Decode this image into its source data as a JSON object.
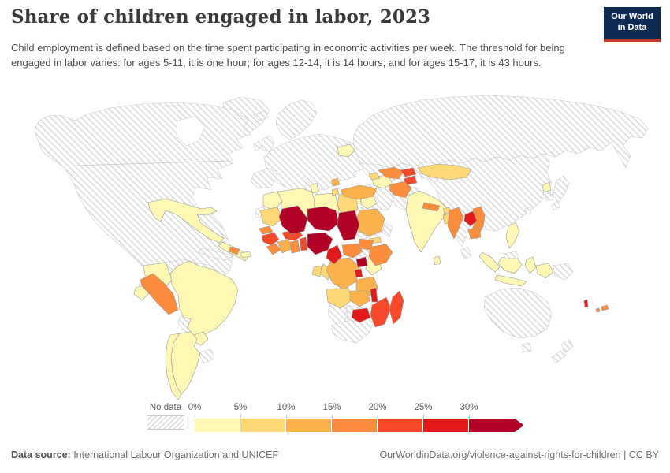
{
  "header": {
    "title": "Share of children engaged in labor, 2023",
    "subtitle": "Child employment is defined based on the time spent participating in economic activities per week. The threshold for being engaged in labor varies: for ages 5-11, it is one hour; for ages 12-14, it is 14 hours; and for ages 15-17, it is 43 hours."
  },
  "logo": {
    "line1": "Our World",
    "line2": "in Data",
    "bg_color": "#0c2b52",
    "accent_color": "#c0392b"
  },
  "footer": {
    "datasource_label": "Data source:",
    "datasource_value": " International Labour Organization and UNICEF",
    "credit": "OurWorldinData.org/violence-against-rights-for-children | CC BY"
  },
  "chart_data": {
    "type": "choropleth",
    "title": "Share of children engaged in labor, 2023",
    "year": "2023",
    "unit": "%",
    "legend": {
      "no_data_label": "No data",
      "tick_labels": [
        "0%",
        "5%",
        "10%",
        "15%",
        "20%",
        "25%",
        "30%"
      ],
      "bin_ranges": [
        "0-5%",
        "5-10%",
        "10-15%",
        "15-20%",
        "20-25%",
        "25-30%",
        "30%+"
      ],
      "colors": [
        "#FFF8B4",
        "#FED976",
        "#FDB14C",
        "#FB8D3C",
        "#F6482A",
        "#E31A1C",
        "#B00026"
      ],
      "hatch_color": "#d9d9d9"
    },
    "regions": [
      {
        "name": "Greenland",
        "bin": "no-data"
      },
      {
        "name": "United States & Canada",
        "bin": "no-data"
      },
      {
        "name": "Cuba",
        "bin": "no-data"
      },
      {
        "name": "Venezuela",
        "bin": "no-data"
      },
      {
        "name": "Guyana & Suriname",
        "bin": "no-data"
      },
      {
        "name": "Bolivia",
        "bin": "no-data"
      },
      {
        "name": "Uruguay",
        "bin": "no-data"
      },
      {
        "name": "Western & Central Europe",
        "bin": "no-data"
      },
      {
        "name": "Iberia",
        "bin": "no-data"
      },
      {
        "name": "Italy",
        "bin": "no-data"
      },
      {
        "name": "United Kingdom",
        "bin": "no-data"
      },
      {
        "name": "Ireland",
        "bin": "no-data"
      },
      {
        "name": "Scandinavia",
        "bin": "no-data"
      },
      {
        "name": "Iceland",
        "bin": "no-data"
      },
      {
        "name": "Russia",
        "bin": "no-data"
      },
      {
        "name": "Kazakhstan",
        "bin": "no-data"
      },
      {
        "name": "China",
        "bin": "no-data"
      },
      {
        "name": "Iran",
        "bin": "no-data"
      },
      {
        "name": "Pakistan",
        "bin": "no-data"
      },
      {
        "name": "Saudi Arabia",
        "bin": "no-data"
      },
      {
        "name": "Oman",
        "bin": "no-data"
      },
      {
        "name": "Somalia",
        "bin": "no-data"
      },
      {
        "name": "Western Sahara",
        "bin": "no-data"
      },
      {
        "name": "Namibia",
        "bin": "no-data"
      },
      {
        "name": "Botswana",
        "bin": "no-data"
      },
      {
        "name": "South Africa",
        "bin": "no-data"
      },
      {
        "name": "Thailand",
        "bin": "no-data"
      },
      {
        "name": "Papua New Guinea",
        "bin": "no-data"
      },
      {
        "name": "Australia",
        "bin": "no-data"
      },
      {
        "name": "New Zealand",
        "bin": "no-data"
      },
      {
        "name": "Japan",
        "bin": "no-data"
      },
      {
        "name": "South Korea",
        "bin": "no-data"
      },
      {
        "name": "Taiwan",
        "bin": "no-data"
      },
      {
        "name": "Mexico",
        "bin": 0
      },
      {
        "name": "Central America",
        "bin": 0
      },
      {
        "name": "Hispaniola",
        "bin": 0
      },
      {
        "name": "Colombia",
        "bin": 0
      },
      {
        "name": "Ecuador",
        "bin": 0
      },
      {
        "name": "Brazil",
        "bin": 0
      },
      {
        "name": "Paraguay",
        "bin": 0
      },
      {
        "name": "Argentina",
        "bin": 0
      },
      {
        "name": "Chile",
        "bin": 0
      },
      {
        "name": "Belarus",
        "bin": 0
      },
      {
        "name": "Morocco",
        "bin": 0
      },
      {
        "name": "Algeria",
        "bin": 0
      },
      {
        "name": "Tunisia",
        "bin": 0
      },
      {
        "name": "Libya",
        "bin": 0
      },
      {
        "name": "Kenya",
        "bin": 0
      },
      {
        "name": "Iraq",
        "bin": 0
      },
      {
        "name": "Syria",
        "bin": 0
      },
      {
        "name": "Jordan & Israel",
        "bin": 0
      },
      {
        "name": "Turkmenistan",
        "bin": 0
      },
      {
        "name": "India",
        "bin": 0
      },
      {
        "name": "Sri Lanka",
        "bin": 0
      },
      {
        "name": "North Korea",
        "bin": 0
      },
      {
        "name": "Philippines",
        "bin": 0
      },
      {
        "name": "Indonesia",
        "bin": 0
      },
      {
        "name": "Egypt",
        "bin": 1
      },
      {
        "name": "Mauritania",
        "bin": 1
      },
      {
        "name": "Eritrea",
        "bin": 1
      },
      {
        "name": "Republic of the Congo",
        "bin": 1
      },
      {
        "name": "Gabon",
        "bin": 1
      },
      {
        "name": "Angola",
        "bin": 1
      },
      {
        "name": "Yemen",
        "bin": 1
      },
      {
        "name": "Azerbaijan",
        "bin": 1
      },
      {
        "name": "Mongolia",
        "bin": 1
      },
      {
        "name": "Bhutan",
        "bin": 1
      },
      {
        "name": "Bangladesh",
        "bin": 1
      },
      {
        "name": "Albania",
        "bin": 1
      },
      {
        "name": "Sudan",
        "bin": 2
      },
      {
        "name": "Cote d'Ivoire",
        "bin": 2
      },
      {
        "name": "DR Congo",
        "bin": 2
      },
      {
        "name": "Tanzania",
        "bin": 2
      },
      {
        "name": "Zambia",
        "bin": 2
      },
      {
        "name": "Turkey",
        "bin": 2
      },
      {
        "name": "Serbia",
        "bin": 2
      },
      {
        "name": "Honduras",
        "bin": 3
      },
      {
        "name": "Peru",
        "bin": 3
      },
      {
        "name": "Senegal",
        "bin": 3
      },
      {
        "name": "Sierra Leone & Liberia",
        "bin": 3
      },
      {
        "name": "Ghana",
        "bin": 3
      },
      {
        "name": "Ethiopia",
        "bin": 3
      },
      {
        "name": "Central African Republic",
        "bin": 3
      },
      {
        "name": "South Sudan",
        "bin": 3
      },
      {
        "name": "Uzbekistan",
        "bin": 3
      },
      {
        "name": "Afghanistan",
        "bin": 3
      },
      {
        "name": "Nepal",
        "bin": 3
      },
      {
        "name": "Myanmar",
        "bin": 3
      },
      {
        "name": "Vietnam",
        "bin": 3
      },
      {
        "name": "Cambodia",
        "bin": 3
      },
      {
        "name": "Fiji",
        "bin": 3
      },
      {
        "name": "Guinea",
        "bin": 4
      },
      {
        "name": "Benin & Togo",
        "bin": 4
      },
      {
        "name": "Burkina Faso",
        "bin": 4
      },
      {
        "name": "Mozambique",
        "bin": 4
      },
      {
        "name": "Madagascar",
        "bin": 4
      },
      {
        "name": "Kyrgyzstan",
        "bin": 4
      },
      {
        "name": "Tajikistan",
        "bin": 4
      },
      {
        "name": "Cameroon",
        "bin": 5
      },
      {
        "name": "Malawi",
        "bin": 5
      },
      {
        "name": "Zimbabwe",
        "bin": 5
      },
      {
        "name": "Rwanda & Burundi",
        "bin": 5
      },
      {
        "name": "Laos",
        "bin": 5
      },
      {
        "name": "Vanuatu",
        "bin": 5
      },
      {
        "name": "Mali",
        "bin": 6
      },
      {
        "name": "Niger",
        "bin": 6
      },
      {
        "name": "Chad",
        "bin": 6
      },
      {
        "name": "Nigeria",
        "bin": 6
      },
      {
        "name": "Uganda",
        "bin": 6
      },
      {
        "name": "Malaysia",
        "bin": "no-data"
      }
    ]
  }
}
